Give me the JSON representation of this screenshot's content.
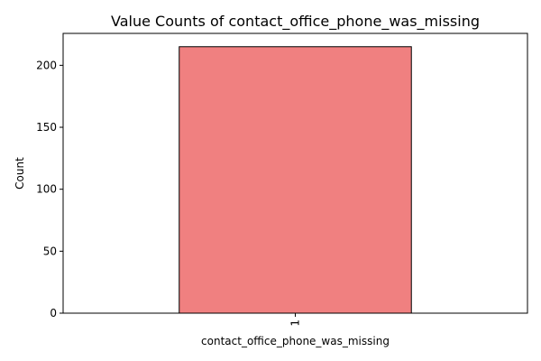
{
  "chart_data": {
    "type": "bar",
    "title": "Value Counts of contact_office_phone_was_missing",
    "xlabel": "contact_office_phone_was_missing",
    "ylabel": "Count",
    "categories": [
      "1"
    ],
    "values": [
      215
    ],
    "ylim": [
      0,
      225.75
    ],
    "yticks": [
      0,
      50,
      100,
      150,
      200
    ],
    "grid": false,
    "legend": "none",
    "bar_color": "#f08080",
    "bar_edge_color": "#000000"
  }
}
